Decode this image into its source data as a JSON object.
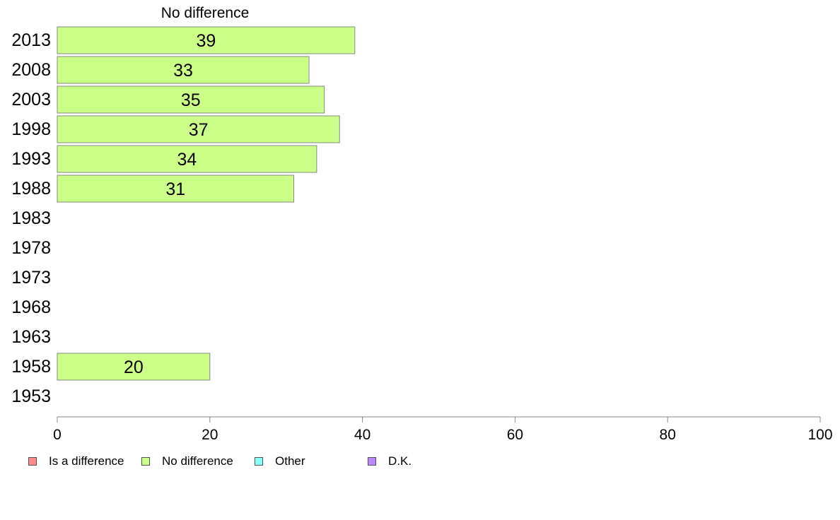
{
  "chart_data": {
    "type": "bar",
    "orientation": "horizontal",
    "title": "No difference",
    "categories": [
      "2013",
      "2008",
      "2003",
      "1998",
      "1993",
      "1988",
      "1983",
      "1978",
      "1973",
      "1968",
      "1963",
      "1958",
      "1953"
    ],
    "series": [
      {
        "name": "No difference",
        "color": "#ccff88",
        "values": [
          39,
          33,
          35,
          37,
          34,
          31,
          null,
          null,
          null,
          null,
          null,
          20,
          null
        ]
      }
    ],
    "xlim": [
      0,
      100
    ],
    "xticks": [
      "0",
      "20",
      "40",
      "60",
      "80",
      "100"
    ],
    "grid": false,
    "legend_position": "bottom-left"
  },
  "legend": [
    {
      "label": "Is a difference",
      "color": "#ff8888"
    },
    {
      "label": "No difference",
      "color": "#ccff88"
    },
    {
      "label": "Other",
      "color": "#88ffff"
    },
    {
      "label": "D.K.",
      "color": "#bb88ff"
    }
  ]
}
